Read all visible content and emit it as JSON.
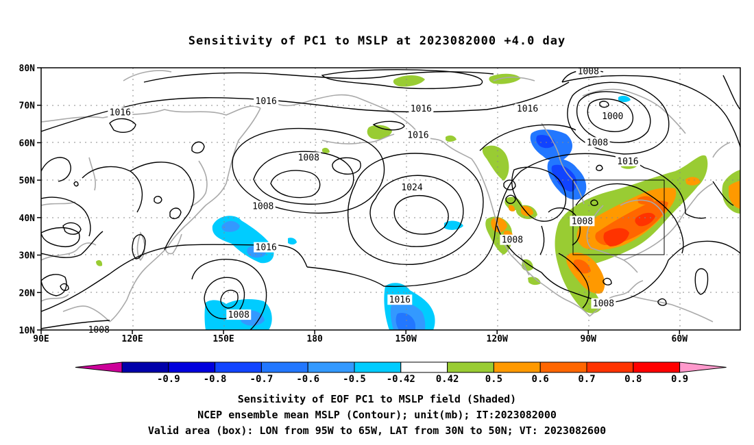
{
  "title": "Sensitivity of PC1 to MSLP at 2023082000 +4.0 day",
  "map": {
    "lat_ticks": [
      "80N",
      "70N",
      "60N",
      "50N",
      "40N",
      "30N",
      "20N",
      "10N"
    ],
    "lon_ticks": [
      "90E",
      "120E",
      "150E",
      "180",
      "150W",
      "120W",
      "90W",
      "60W"
    ],
    "lon_range_deg_east": [
      90,
      320
    ],
    "lat_range": [
      10,
      80
    ],
    "contour_unit": "mb",
    "contour_labels": [
      {
        "text": "1016",
        "lon": 164,
        "lat": 71
      },
      {
        "text": "1016",
        "lon": 215,
        "lat": 69
      },
      {
        "text": "1016",
        "lon": 250,
        "lat": 69
      },
      {
        "text": "1016",
        "lon": 116,
        "lat": 68
      },
      {
        "text": "1016",
        "lon": 214,
        "lat": 62
      },
      {
        "text": "1016",
        "lon": 283,
        "lat": 55
      },
      {
        "text": "1016",
        "lon": 164,
        "lat": 32
      },
      {
        "text": "1016",
        "lon": 208,
        "lat": 18
      },
      {
        "text": "1008",
        "lon": 270,
        "lat": 79
      },
      {
        "text": "1008",
        "lon": 178,
        "lat": 56
      },
      {
        "text": "1008",
        "lon": 163,
        "lat": 43
      },
      {
        "text": "1008",
        "lon": 273,
        "lat": 60
      },
      {
        "text": "1008",
        "lon": 268,
        "lat": 39
      },
      {
        "text": "1008",
        "lon": 245,
        "lat": 34
      },
      {
        "text": "1008",
        "lon": 275,
        "lat": 17
      },
      {
        "text": "1008",
        "lon": 155,
        "lat": 14
      },
      {
        "text": "1008",
        "lon": 109,
        "lat": 10
      },
      {
        "text": "1024",
        "lon": 212,
        "lat": 48
      },
      {
        "text": "1000",
        "lon": 278,
        "lat": 67
      }
    ],
    "valid_box": {
      "lon_w": 265,
      "lon_e": 295,
      "lat_s": 30,
      "lat_n": 50
    }
  },
  "colorbar": {
    "labels": [
      "-0.9",
      "-0.8",
      "-0.7",
      "-0.6",
      "-0.5",
      "-0.42",
      "0.42",
      "0.5",
      "0.6",
      "0.7",
      "0.8",
      "0.9"
    ],
    "colors": [
      "#0000aa",
      "#0000dd",
      "#1144ff",
      "#2277ff",
      "#3399ff",
      "#00ccff",
      "#ffffff",
      "#99cc33",
      "#ff9900",
      "#ff6600",
      "#ff3300",
      "#ff0000"
    ],
    "low_end_color": "#cc0099",
    "high_end_color": "#ff99cc"
  },
  "captions": [
    "Sensitivity of EOF PC1 to MSLP field (Shaded)",
    "NCEP ensemble mean MSLP (Contour); unit(mb); IT:2023082000",
    "Valid area (box): LON from 95W to 65W, LAT from 30N to 50N; VT: 2023082600"
  ]
}
